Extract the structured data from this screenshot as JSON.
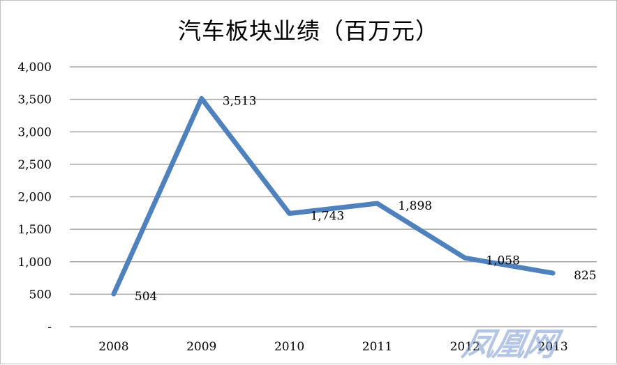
{
  "chart_data": {
    "type": "line",
    "title": "汽车板块业绩（百万元）",
    "categories": [
      "2008",
      "2009",
      "2010",
      "2011",
      "2012",
      "2013"
    ],
    "series": [
      {
        "values": [
          504,
          3513,
          1743,
          1898,
          1058,
          825
        ],
        "labels": [
          "504",
          "3,513",
          "1,743",
          "1,898",
          "1,058",
          "825"
        ]
      }
    ],
    "yticks": [
      0,
      500,
      1000,
      1500,
      2000,
      2500,
      3000,
      3500,
      4000
    ],
    "ytick_labels": [
      "-",
      "500",
      "1,000",
      "1,500",
      "2,000",
      "2,500",
      "3,000",
      "3,500",
      "4,000"
    ],
    "ylim": [
      0,
      4000
    ],
    "grid": true,
    "legend": "none",
    "line_color": "#4f81bd",
    "grid_color": "#a6a6a6"
  },
  "watermark": "凤凰网"
}
